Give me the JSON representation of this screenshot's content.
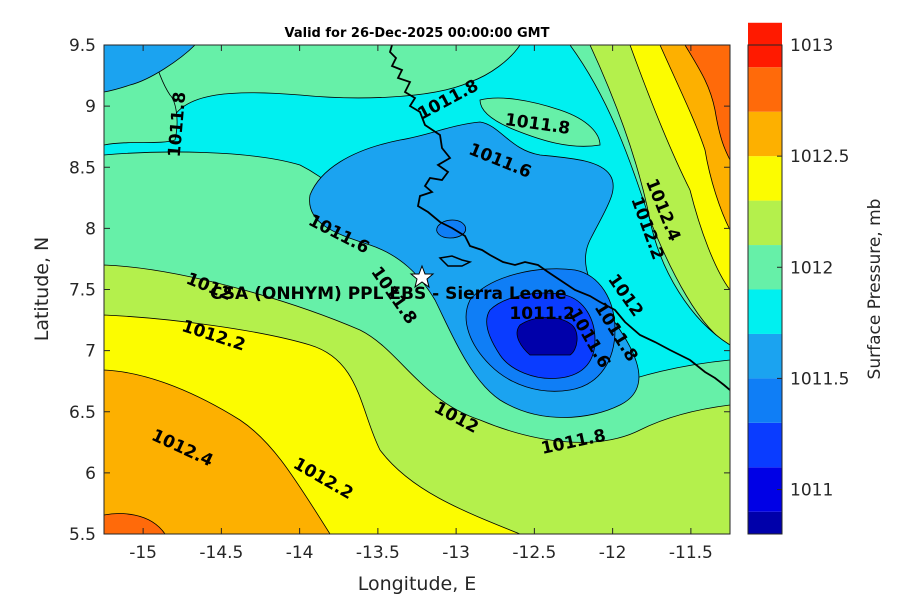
{
  "chart_data": {
    "type": "contour",
    "title": "Valid for 26-Dec-2025 00:00:00 GMT",
    "xlabel": "Longitude, E",
    "ylabel": "Latitude, N",
    "xlim": [
      -15.25,
      -11.25
    ],
    "ylim": [
      5.5,
      9.5
    ],
    "xticks": [
      "-15",
      "-14.5",
      "-14",
      "-13.5",
      "-13",
      "-12.5",
      "-12",
      "-11.5"
    ],
    "xtick_values": [
      -15,
      -14.5,
      -14,
      -13.5,
      -13,
      -12.5,
      -12,
      -11.5
    ],
    "yticks": [
      "5.5",
      "6",
      "6.5",
      "7",
      "7.5",
      "8",
      "8.5",
      "9",
      "9.5"
    ],
    "ytick_values": [
      5.5,
      6,
      6.5,
      7,
      7.5,
      8,
      8.5,
      9,
      9.5
    ],
    "colorbar": {
      "label": "Surface Pressure, mb",
      "range": [
        1010.8,
        1013.0
      ],
      "step": 0.2,
      "ticks": [
        "1011",
        "1011.5",
        "1012",
        "1012.5",
        "1013"
      ],
      "tick_values": [
        1011,
        1011.5,
        1012,
        1012.5,
        1013
      ],
      "colors": [
        "#0000aa",
        "#0000e6",
        "#0a3cff",
        "#0f7ef6",
        "#1ba3f0",
        "#00f0f0",
        "#66f0a8",
        "#b4f04c",
        "#fcfc00",
        "#fdb000",
        "#ff6a0a",
        "#ff1a00",
        "#a80000"
      ]
    },
    "contour_labels": [
      {
        "text": "1011.8",
        "lon": -14.78,
        "lat": 8.85,
        "angle": -85
      },
      {
        "text": "1011.8",
        "lon": -13.05,
        "lat": 9.05,
        "angle": -28
      },
      {
        "text": "1011.8",
        "lon": -12.48,
        "lat": 8.85,
        "angle": 8
      },
      {
        "text": "1011.6",
        "lon": -12.72,
        "lat": 8.55,
        "angle": 22
      },
      {
        "text": "1012.4",
        "lon": -11.68,
        "lat": 8.15,
        "angle": 68
      },
      {
        "text": "1012.2",
        "lon": -11.78,
        "lat": 8.0,
        "angle": 70
      },
      {
        "text": "1011.6",
        "lon": -13.75,
        "lat": 7.95,
        "angle": 27
      },
      {
        "text": "1012",
        "lon": -14.58,
        "lat": 7.52,
        "angle": 22
      },
      {
        "text": "1011.8",
        "lon": -13.4,
        "lat": 7.45,
        "angle": 55
      },
      {
        "text": "1012.2",
        "lon": -14.55,
        "lat": 7.12,
        "angle": 18
      },
      {
        "text": "1012",
        "lon": -11.92,
        "lat": 7.45,
        "angle": 55
      },
      {
        "text": "1011.8",
        "lon": -11.98,
        "lat": 7.15,
        "angle": 58
      },
      {
        "text": "1011.6",
        "lon": -12.15,
        "lat": 7.1,
        "angle": 60
      },
      {
        "text": "1011.2",
        "lon": -12.45,
        "lat": 7.3,
        "angle": 0
      },
      {
        "text": "1012",
        "lon": -13.0,
        "lat": 6.45,
        "angle": 28
      },
      {
        "text": "1012.4",
        "lon": -14.75,
        "lat": 6.2,
        "angle": 25
      },
      {
        "text": "1012.2",
        "lon": -13.85,
        "lat": 5.95,
        "angle": 30
      },
      {
        "text": "1011.8",
        "lon": -12.25,
        "lat": 6.25,
        "angle": -12
      }
    ],
    "station": {
      "name": "CSA (ONHYM) PPL EBS - Sierra Leone",
      "lon": -13.25,
      "lat": 7.6
    }
  }
}
